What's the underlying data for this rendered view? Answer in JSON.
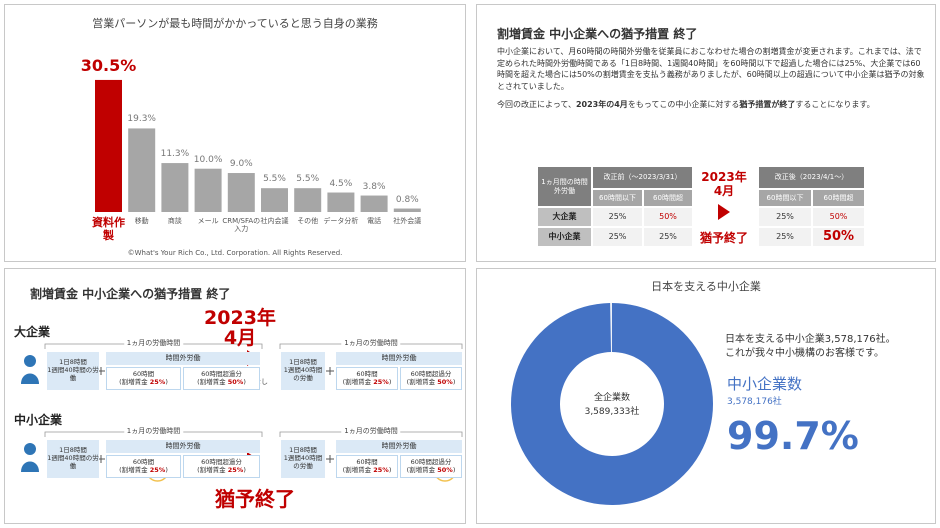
{
  "chart_data": [
    {
      "type": "bar",
      "title": "営業パーソンが最も時間がかかっていると思う自身の業務",
      "categories": [
        "資料作製",
        "移動",
        "商談",
        "メール",
        "CRM/SFAの入力",
        "社内会議",
        "その他",
        "データ分析",
        "電話",
        "社外会議"
      ],
      "values": [
        30.5,
        19.3,
        11.3,
        10,
        9,
        5.5,
        5.5,
        4.5,
        3.8,
        0.8
      ],
      "value_labels": [
        "30.5%",
        "19.3%",
        "11.3%",
        "10.0%",
        "9.0%",
        "5.5%",
        "5.5%",
        "4.5%",
        "3.8%",
        "0.8%"
      ],
      "colors": [
        "#c00000",
        "#a6a6a6",
        "#a6a6a6",
        "#a6a6a6",
        "#a6a6a6",
        "#a6a6a6",
        "#a6a6a6",
        "#a6a6a6",
        "#a6a6a6",
        "#a6a6a6"
      ],
      "footnote": "©What's Your Rich Co., Ltd. Corporation. All Rights Reserved."
    },
    {
      "type": "pie",
      "title": "日本を支える中小企業",
      "center": [
        "全企業数",
        "3,589,333社"
      ],
      "notes": [
        "日本を支える中小企業3,578,176社。",
        "これが我々中小機構のお客様です。"
      ],
      "series": [
        {
          "name": "中小企業数",
          "color": "#4472c4",
          "values": [
            99.7
          ],
          "value_labels": [
            "99.7%"
          ],
          "count_label": "3,578,176社"
        }
      ]
    }
  ],
  "policy": {
    "title": "割増賃金 中小企業への猶予措置 終了",
    "paragraphs": [
      "中小企業において、月60時間の時間外労働を従業員におこなわせた場合の割増賃金が変更されます。これまでは、法で定められた時間外労働時間である「1日8時間、1週間40時間」を60時間以下で超過した場合には25%、大企業では60時間を超えた場合には50%の割増賃金を支払う義務がありましたが、60時間以上の超過について中小企業は猶予の対象とされていました。",
      [
        "今回の改正によって、",
        "2023年の4月",
        "をもってこの中小企業に対する",
        "猶予措置が終了",
        "することになります。"
      ]
    ],
    "before": {
      "corner": "1ヵ月間の時間外労働",
      "header": "改正前（～2023/3/31）",
      "cols": [
        "60時間以下",
        "60時間超"
      ],
      "rows": [
        [
          "大企業",
          "25%",
          "50%"
        ],
        [
          "中小企業",
          "25%",
          "25%"
        ]
      ]
    },
    "change": {
      "date": [
        "2023年",
        "4月"
      ],
      "label": "猶予終了"
    },
    "after": {
      "header": "改正後（2023/4/1～）",
      "cols": [
        "60時間以下",
        "60時間超"
      ],
      "rows": [
        [
          "25%",
          "50%"
        ],
        [
          "25%",
          "50%"
        ]
      ]
    }
  },
  "diagram": {
    "title": "割増賃金 中小企業への猶予措置 終了",
    "date": [
      "2023年",
      "4月"
    ],
    "end_label": "猶予終了",
    "no_change": "変更なし",
    "groups": [
      {
        "label": "大企業",
        "boxes": [
          {
            "period": "1ヵ月の労働時間",
            "base": [
              "1日8時間",
              "1週間40時間の労働"
            ],
            "overtime": "時間外労働",
            "under60": {
              "hours": "60時間",
              "rate": [
                "(割増賃金 ",
                "25%",
                ")"
              ]
            },
            "over60": {
              "hours": "60時間超過分",
              "rate": [
                "(割増賃金 ",
                "50%",
                ")"
              ]
            }
          },
          {
            "period": "1ヵ月の労働時間",
            "base": [
              "1日8時間",
              "1週間40時間の労働"
            ],
            "overtime": "時間外労働",
            "under60": {
              "hours": "60時間",
              "rate": [
                "(割増賃金 ",
                "25%",
                ")"
              ]
            },
            "over60": {
              "hours": "60時間超過分",
              "rate": [
                "(割増賃金 ",
                "50%",
                ")"
              ]
            }
          }
        ]
      },
      {
        "label": "中小企業",
        "boxes": [
          {
            "period": "1ヵ月の労働時間",
            "base": [
              "1日8時間",
              "1週間40時間の労働"
            ],
            "overtime": "時間外労働",
            "under60": {
              "hours": "60時間",
              "rate": [
                "(割増賃金 ",
                "25%",
                ")"
              ]
            },
            "over60": {
              "hours": "60時間超過分",
              "rate": [
                "(割増賃金 ",
                "25%",
                ")"
              ]
            }
          },
          {
            "period": "1ヵ月の労働時間",
            "base": [
              "1日8時間",
              "1週間40時間の労働"
            ],
            "overtime": "時間外労働",
            "under60": {
              "hours": "60時間",
              "rate": [
                "(割増賃金 ",
                "25%",
                ")"
              ]
            },
            "over60": {
              "hours": "60時間超過分",
              "rate": [
                "(割増賃金 ",
                "50%",
                ")"
              ]
            }
          }
        ]
      }
    ]
  }
}
